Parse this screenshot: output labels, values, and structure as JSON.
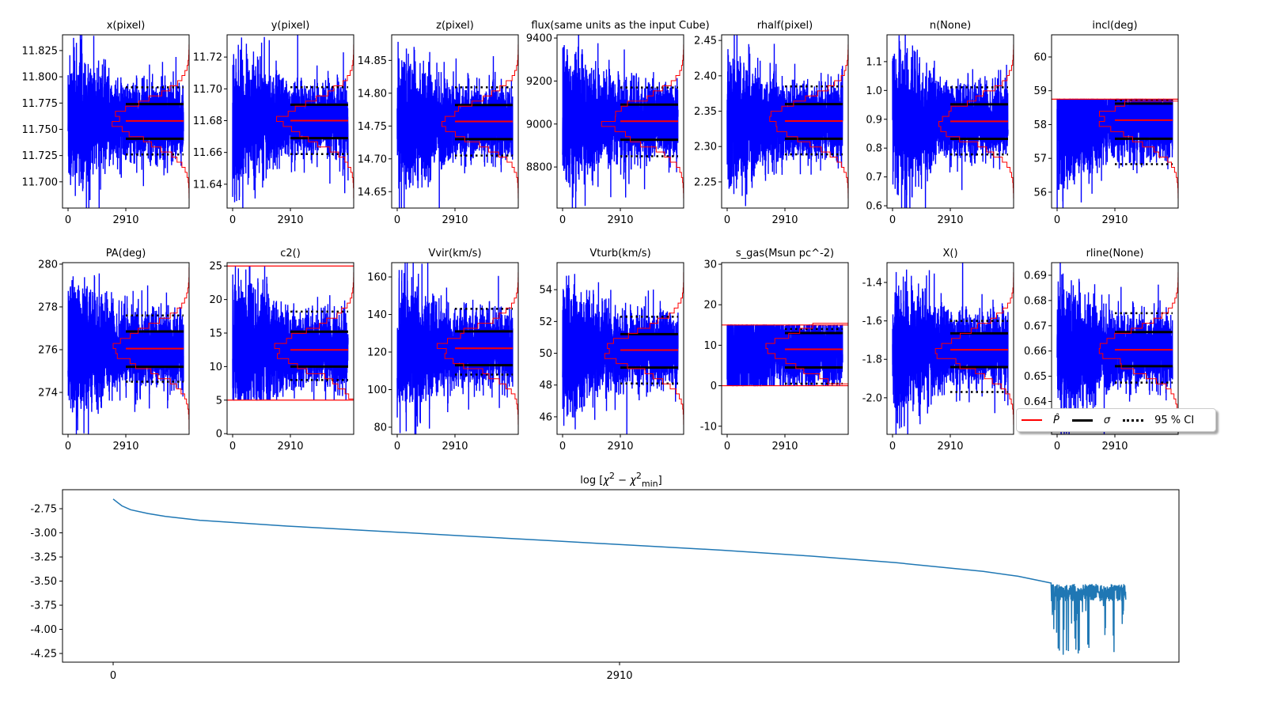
{
  "chart_data": [
    {
      "type": "line",
      "title": "x(pixel)",
      "xticks": [
        0,
        2910
      ],
      "xlim": [
        -290,
        6090
      ],
      "n_samples": 5820,
      "ylim": [
        11.675,
        11.84
      ],
      "yticks": [
        "11.700",
        "11.725",
        "11.750",
        "11.775",
        "11.800",
        "11.825"
      ],
      "median": 11.758,
      "sigma": [
        11.741,
        11.774
      ],
      "ci95": [
        11.726,
        11.79
      ]
    },
    {
      "type": "line",
      "title": "y(pixel)",
      "xticks": [
        0,
        2910
      ],
      "xlim": [
        -290,
        6090
      ],
      "n_samples": 5820,
      "ylim": [
        11.625,
        11.734
      ],
      "yticks": [
        "11.64",
        "11.66",
        "11.68",
        "11.70",
        "11.72"
      ],
      "median": 11.68,
      "sigma": [
        11.669,
        11.69
      ],
      "ci95": [
        11.659,
        11.701
      ]
    },
    {
      "type": "line",
      "title": "z(pixel)",
      "xticks": [
        0,
        2910
      ],
      "xlim": [
        -290,
        6090
      ],
      "n_samples": 5820,
      "ylim": [
        14.625,
        14.889
      ],
      "yticks": [
        "14.65",
        "14.70",
        "14.75",
        "14.80",
        "14.85"
      ],
      "median": 14.757,
      "sigma": [
        14.73,
        14.782
      ],
      "ci95": [
        14.705,
        14.809
      ]
    },
    {
      "type": "line",
      "title": "flux(same units as the input Cube)",
      "xticks": [
        0,
        2910
      ],
      "xlim": [
        -290,
        6090
      ],
      "n_samples": 5820,
      "ylim": [
        8609,
        9415
      ],
      "yticks": [
        "8800",
        "9000",
        "9200",
        "9400"
      ],
      "median": 9013,
      "sigma": [
        8927,
        9090
      ],
      "ci95": [
        8850,
        9170
      ]
    },
    {
      "type": "line",
      "title": "rhalf(pixel)",
      "xticks": [
        0,
        2910
      ],
      "xlim": [
        -290,
        6090
      ],
      "n_samples": 5820,
      "ylim": [
        2.213,
        2.458
      ],
      "yticks": [
        "2.25",
        "2.30",
        "2.35",
        "2.40",
        "2.45"
      ],
      "median": 2.336,
      "sigma": [
        2.311,
        2.36
      ],
      "ci95": [
        2.289,
        2.385
      ]
    },
    {
      "type": "line",
      "title": "n(None)",
      "xticks": [
        0,
        2910
      ],
      "xlim": [
        -290,
        6090
      ],
      "n_samples": 5820,
      "ylim": [
        0.592,
        1.193
      ],
      "yticks": [
        "0.6",
        "0.7",
        "0.8",
        "0.9",
        "1.0",
        "1.1"
      ],
      "median": 0.893,
      "sigma": [
        0.832,
        0.952
      ],
      "ci95": [
        0.778,
        1.011
      ]
    },
    {
      "type": "line",
      "title": "incl(deg)",
      "xticks": [
        0,
        2910
      ],
      "xlim": [
        -290,
        6090
      ],
      "n_samples": 5820,
      "ylim": [
        55.53,
        60.655
      ],
      "yticks": [
        "56",
        "57",
        "58",
        "59",
        "60"
      ],
      "median": 58.13,
      "sigma": [
        57.58,
        58.62
      ],
      "ci95": [
        56.83,
        58.72
      ],
      "bounds": [
        null,
        58.75
      ]
    },
    {
      "type": "line",
      "title": "PA(deg)",
      "xticks": [
        0,
        2910
      ],
      "xlim": [
        -290,
        6090
      ],
      "n_samples": 5820,
      "ylim": [
        272.04,
        280.07
      ],
      "yticks": [
        "274",
        "276",
        "278",
        "280"
      ],
      "median": 276.05,
      "sigma": [
        275.2,
        276.85
      ],
      "ci95": [
        274.5,
        277.6
      ]
    },
    {
      "type": "line",
      "title": "c2()",
      "xticks": [
        0,
        2910
      ],
      "xlim": [
        -290,
        6090
      ],
      "n_samples": 5820,
      "ylim": [
        -0.1,
        25.5
      ],
      "yticks": [
        "0",
        "5",
        "10",
        "15",
        "20",
        "25"
      ],
      "median": 12.5,
      "sigma": [
        10.0,
        15.2
      ],
      "ci95": [
        8.0,
        18.2
      ],
      "bounds": [
        5,
        25
      ]
    },
    {
      "type": "line",
      "title": "Vvir(km/s)",
      "xticks": [
        0,
        2910
      ],
      "xlim": [
        -290,
        6090
      ],
      "n_samples": 5820,
      "ylim": [
        76.2,
        167.6
      ],
      "yticks": [
        "80",
        "100",
        "120",
        "140",
        "160"
      ],
      "median": 122,
      "sigma": [
        113,
        131
      ],
      "ci95": [
        108,
        143
      ]
    },
    {
      "type": "line",
      "title": "Vturb(km/s)",
      "xticks": [
        0,
        2910
      ],
      "xlim": [
        -290,
        6090
      ],
      "n_samples": 5820,
      "ylim": [
        44.9,
        55.7
      ],
      "yticks": [
        "46",
        "48",
        "50",
        "52",
        "54"
      ],
      "median": 50.2,
      "sigma": [
        49.1,
        51.2
      ],
      "ci95": [
        48.1,
        52.3
      ]
    },
    {
      "type": "line",
      "title": "s_gas(Msun pc^-2)",
      "xticks": [
        0,
        2910
      ],
      "xlim": [
        -290,
        6090
      ],
      "n_samples": 5820,
      "ylim": [
        -12,
        30.4
      ],
      "yticks": [
        "-10",
        "0",
        "10",
        "20",
        "30"
      ],
      "median": 9.0,
      "sigma": [
        4.5,
        13.0
      ],
      "ci95": [
        0.5,
        14.0
      ],
      "bounds": [
        0,
        15
      ]
    },
    {
      "type": "line",
      "title": "X()",
      "xticks": [
        0,
        2910
      ],
      "xlim": [
        -290,
        6090
      ],
      "n_samples": 5820,
      "ylim": [
        -2.19,
        -1.297
      ],
      "yticks": [
        "-2.0",
        "-1.8",
        "-1.6",
        "-1.4"
      ],
      "median": -1.75,
      "sigma": [
        -1.84,
        -1.665
      ],
      "ci95": [
        -1.97,
        -1.6
      ]
    },
    {
      "type": "line",
      "title": "rline(None)",
      "xticks": [
        0,
        2910
      ],
      "xlim": [
        -290,
        6090
      ],
      "n_samples": 5820,
      "ylim": [
        0.627,
        0.695
      ],
      "yticks": [
        "0.64",
        "0.65",
        "0.66",
        "0.67",
        "0.68",
        "0.69"
      ],
      "median": 0.6605,
      "sigma": [
        0.654,
        0.6675
      ],
      "ci95": [
        0.6475,
        0.675
      ]
    },
    {
      "type": "line",
      "title_parts": {
        "prefix": "log  [",
        "chi": "χ",
        "sup": "2",
        "minus": " − ",
        "chi2": "χ",
        "sup2": "2",
        "sub": "min",
        "suffix": "]"
      },
      "xticks": [
        0,
        2910
      ],
      "xlim": [
        -290,
        6128
      ],
      "ylim": [
        -4.34,
        -2.553
      ],
      "yticks": [
        "-2.75",
        "-3.00",
        "-3.25",
        "-3.50",
        "-3.75",
        "-4.00",
        "-4.25"
      ],
      "x": [
        0,
        50,
        100,
        200,
        300,
        500,
        1000,
        1500,
        2000,
        2500,
        3000,
        3500,
        4000,
        4500,
        5000,
        5200,
        5390
      ],
      "y": [
        -2.65,
        -2.72,
        -2.76,
        -2.8,
        -2.83,
        -2.87,
        -2.93,
        -2.98,
        -3.03,
        -3.08,
        -3.13,
        -3.18,
        -3.24,
        -3.31,
        -3.4,
        -3.45,
        -3.52
      ],
      "noisy_tail": {
        "x_range": [
          5390,
          5820
        ],
        "y_top": -3.53,
        "y_typical_low": -3.75,
        "y_min": -4.27
      }
    }
  ],
  "legend": {
    "items": [
      {
        "label": "P̂",
        "color": "#ff0000",
        "style": "solid"
      },
      {
        "label": "σ",
        "color": "#000000",
        "style": "thick"
      },
      {
        "label": "95 % CI",
        "color": "#000000",
        "style": "dotted"
      }
    ]
  },
  "colors": {
    "trace": "#0000ff",
    "median": "#ff0000",
    "hist": "#ff0000",
    "chi": "#1f77b4"
  }
}
